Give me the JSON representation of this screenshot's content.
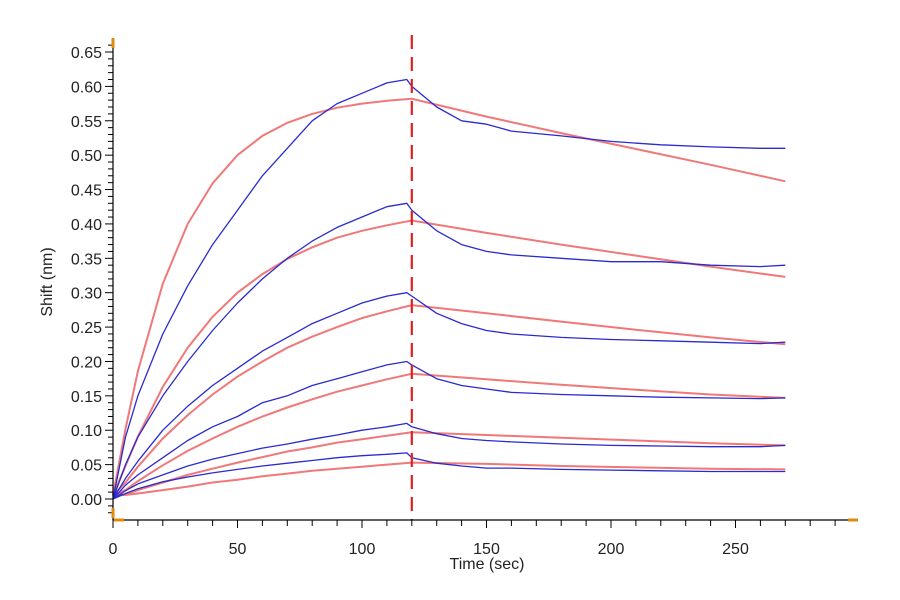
{
  "chart_data": {
    "type": "line",
    "title": "",
    "xlabel": "Time (sec)",
    "ylabel": "Shift (nm)",
    "xlim": [
      0,
      297
    ],
    "ylim": [
      -0.028,
      0.663
    ],
    "x_ticks": [
      "0",
      "50",
      "100",
      "150",
      "200",
      "250"
    ],
    "x_tick_values": [
      0,
      50,
      100,
      150,
      200,
      250
    ],
    "x_minor_step": 10,
    "y_ticks": [
      "0.00",
      "0.05",
      "0.10",
      "0.15",
      "0.20",
      "0.25",
      "0.30",
      "0.35",
      "0.40",
      "0.45",
      "0.50",
      "0.55",
      "0.60",
      "0.65"
    ],
    "y_tick_values": [
      0,
      0.05,
      0.1,
      0.15,
      0.2,
      0.25,
      0.3,
      0.35,
      0.4,
      0.45,
      0.5,
      0.55,
      0.6,
      0.65
    ],
    "y_minor_step": 0.01,
    "grid": false,
    "legend": "none",
    "marker_line": {
      "x": 120,
      "style": "dashed",
      "color": "#e02020"
    },
    "colors": {
      "data": "#2a2ad0",
      "fit": "#f07878",
      "axis": "#000000",
      "corner_marks": "#e08a10"
    },
    "data_x": [
      0,
      5,
      10,
      20,
      30,
      40,
      50,
      60,
      70,
      80,
      90,
      100,
      110,
      118,
      120,
      130,
      140,
      150,
      160,
      180,
      200,
      220,
      240,
      260,
      270
    ],
    "data_series": [
      {
        "name": "data-1",
        "values": [
          0,
          0.09,
          0.15,
          0.24,
          0.31,
          0.37,
          0.42,
          0.47,
          0.51,
          0.55,
          0.575,
          0.59,
          0.605,
          0.61,
          0.6,
          0.57,
          0.55,
          0.545,
          0.535,
          0.528,
          0.52,
          0.515,
          0.512,
          0.51,
          0.51
        ]
      },
      {
        "name": "data-2",
        "values": [
          0,
          0.05,
          0.09,
          0.15,
          0.2,
          0.245,
          0.285,
          0.32,
          0.35,
          0.375,
          0.395,
          0.41,
          0.425,
          0.43,
          0.42,
          0.39,
          0.37,
          0.36,
          0.355,
          0.35,
          0.345,
          0.345,
          0.34,
          0.338,
          0.34
        ]
      },
      {
        "name": "data-3",
        "values": [
          0,
          0.03,
          0.055,
          0.1,
          0.135,
          0.165,
          0.19,
          0.215,
          0.235,
          0.255,
          0.27,
          0.285,
          0.295,
          0.3,
          0.295,
          0.27,
          0.255,
          0.245,
          0.24,
          0.235,
          0.232,
          0.23,
          0.228,
          0.226,
          0.228
        ]
      },
      {
        "name": "data-4",
        "values": [
          0,
          0.02,
          0.035,
          0.06,
          0.085,
          0.105,
          0.12,
          0.14,
          0.15,
          0.165,
          0.175,
          0.185,
          0.195,
          0.2,
          0.195,
          0.175,
          0.165,
          0.16,
          0.155,
          0.152,
          0.15,
          0.148,
          0.147,
          0.146,
          0.147
        ]
      },
      {
        "name": "data-5",
        "values": [
          0,
          0.012,
          0.022,
          0.035,
          0.048,
          0.058,
          0.066,
          0.074,
          0.08,
          0.087,
          0.093,
          0.1,
          0.105,
          0.11,
          0.105,
          0.095,
          0.088,
          0.085,
          0.083,
          0.08,
          0.078,
          0.077,
          0.076,
          0.076,
          0.078
        ]
      },
      {
        "name": "data-6",
        "values": [
          0,
          0.008,
          0.015,
          0.025,
          0.032,
          0.038,
          0.043,
          0.048,
          0.052,
          0.056,
          0.06,
          0.063,
          0.065,
          0.067,
          0.06,
          0.052,
          0.048,
          0.045,
          0.045,
          0.043,
          0.042,
          0.041,
          0.04,
          0.04,
          0.04
        ]
      }
    ],
    "fit_x": [
      0,
      5,
      10,
      20,
      30,
      40,
      50,
      60,
      70,
      80,
      90,
      100,
      110,
      120,
      150,
      180,
      210,
      240,
      270
    ],
    "fit_series": [
      {
        "name": "fit-1",
        "values": [
          0.005,
          0.102,
          0.186,
          0.313,
          0.4,
          0.459,
          0.5,
          0.528,
          0.547,
          0.56,
          0.569,
          0.575,
          0.579,
          0.582,
          0.556,
          0.532,
          0.509,
          0.486,
          0.462
        ]
      },
      {
        "name": "fit-2",
        "values": [
          0.005,
          0.048,
          0.091,
          0.163,
          0.22,
          0.265,
          0.3,
          0.327,
          0.349,
          0.366,
          0.38,
          0.39,
          0.398,
          0.405,
          0.387,
          0.37,
          0.354,
          0.338,
          0.323
        ]
      },
      {
        "name": "fit-3",
        "values": [
          0.005,
          0.024,
          0.047,
          0.088,
          0.122,
          0.152,
          0.178,
          0.2,
          0.22,
          0.236,
          0.25,
          0.263,
          0.273,
          0.282,
          0.27,
          0.258,
          0.246,
          0.235,
          0.225
        ]
      },
      {
        "name": "fit-4",
        "values": [
          0.005,
          0.013,
          0.026,
          0.049,
          0.07,
          0.088,
          0.105,
          0.12,
          0.133,
          0.145,
          0.156,
          0.165,
          0.174,
          0.182,
          0.174,
          0.166,
          0.159,
          0.152,
          0.147
        ]
      },
      {
        "name": "fit-5",
        "values": [
          0.005,
          0.0065,
          0.013,
          0.024,
          0.035,
          0.044,
          0.053,
          0.061,
          0.069,
          0.075,
          0.082,
          0.087,
          0.092,
          0.097,
          0.093,
          0.089,
          0.085,
          0.081,
          0.078
        ]
      },
      {
        "name": "fit-6",
        "values": [
          0.005,
          0.006,
          0.008,
          0.013,
          0.018,
          0.024,
          0.028,
          0.033,
          0.037,
          0.041,
          0.044,
          0.047,
          0.05,
          0.053,
          0.051,
          0.048,
          0.046,
          0.044,
          0.043
        ]
      }
    ]
  }
}
